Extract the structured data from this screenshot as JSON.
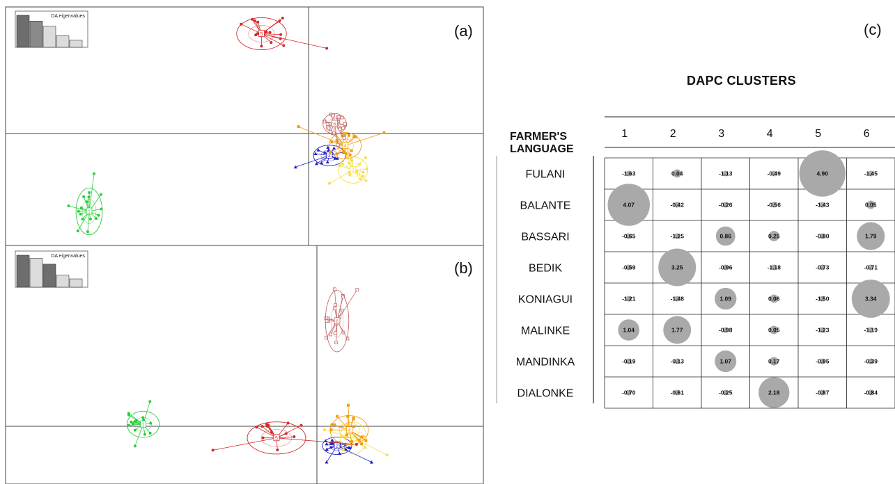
{
  "panels": {
    "a": {
      "label": "(a)",
      "eigen_title": "DA eigenvalues",
      "eigen_values": [
        1.0,
        0.82,
        0.66,
        0.36,
        0.22
      ]
    },
    "b": {
      "label": "(b)",
      "eigen_title": "DA eigenvalues",
      "eigen_values": [
        1.0,
        0.9,
        0.72,
        0.38,
        0.26
      ]
    },
    "c": {
      "label": "(c)"
    }
  },
  "colors": {
    "red": "#d62728",
    "salmon": "#c46a6a",
    "green": "#2ecc40",
    "blue": "#1f1fc8",
    "orange": "#f39c12",
    "yellow": "#f5e050",
    "bubble": "#a9a9a9",
    "axis": "#444444"
  },
  "chart_data": [
    {
      "type": "scatter",
      "panel": "(a)",
      "description_free": true,
      "groups": [
        {
          "id": "1",
          "color": "green",
          "center": [
            -4.2,
            -1.6
          ]
        },
        {
          "id": "2",
          "color": "blue",
          "center": [
            0.4,
            -0.45
          ]
        },
        {
          "id": "3",
          "color": "yellow",
          "center": [
            0.85,
            -0.75
          ]
        },
        {
          "id": "4",
          "color": "orange",
          "center": [
            0.7,
            -0.25
          ]
        },
        {
          "id": "5",
          "color": "red",
          "center": [
            -0.9,
            2.05
          ]
        },
        {
          "id": "6",
          "color": "salmon",
          "center": [
            0.5,
            0.2
          ]
        }
      ]
    },
    {
      "type": "scatter",
      "panel": "(b)",
      "groups": [
        {
          "id": "1",
          "color": "green",
          "center": [
            -4.3,
            0.05
          ]
        },
        {
          "id": "2",
          "color": "blue",
          "center": [
            0.5,
            -0.5
          ]
        },
        {
          "id": "3",
          "color": "yellow",
          "center": [
            0.9,
            -0.3
          ]
        },
        {
          "id": "4",
          "color": "orange",
          "center": [
            0.8,
            -0.1
          ]
        },
        {
          "id": "5",
          "color": "red",
          "center": [
            -1.0,
            -0.3
          ]
        },
        {
          "id": "6",
          "color": "salmon",
          "center": [
            0.5,
            2.7
          ]
        }
      ]
    },
    {
      "type": "table",
      "panel": "(c)",
      "title": "DAPC CLUSTERS",
      "row_header": "FARMER'S LANGUAGE",
      "columns": [
        "1",
        "2",
        "3",
        "4",
        "5",
        "6"
      ],
      "rows": [
        {
          "name": "FULANI",
          "values": [
            "-1.63",
            "0.04",
            "-1.13",
            "-0.49",
            "4.90",
            "-1.45"
          ]
        },
        {
          "name": "BALANTE",
          "values": [
            "4.07",
            "-0.42",
            "-0.26",
            "-0.56",
            "-1.43",
            "0.05"
          ]
        },
        {
          "name": "BASSARI",
          "values": [
            "-0.65",
            "-1.25",
            "0.86",
            "0.25",
            "-0.80",
            "1.79"
          ]
        },
        {
          "name": "BEDIK",
          "values": [
            "-0.59",
            "3.25",
            "-0.96",
            "-1.18",
            "-0.73",
            "-0.71"
          ]
        },
        {
          "name": "KONIAGUI",
          "values": [
            "-1.21",
            "-1.48",
            "1.09",
            "0.06",
            "-1.50",
            "3.34"
          ]
        },
        {
          "name": "MALINKE",
          "values": [
            "1.04",
            "1.77",
            "-0.98",
            "0.05",
            "-1.23",
            "-1.19"
          ]
        },
        {
          "name": "MANDINKA",
          "values": [
            "-0.19",
            "-0.13",
            "1.07",
            "0.17",
            "-0.95",
            "-0.39"
          ]
        },
        {
          "name": "DIALONKE",
          "values": [
            "-0.70",
            "-0.61",
            "-0.25",
            "2.18",
            "-0.87",
            "-0.84"
          ]
        }
      ]
    }
  ]
}
